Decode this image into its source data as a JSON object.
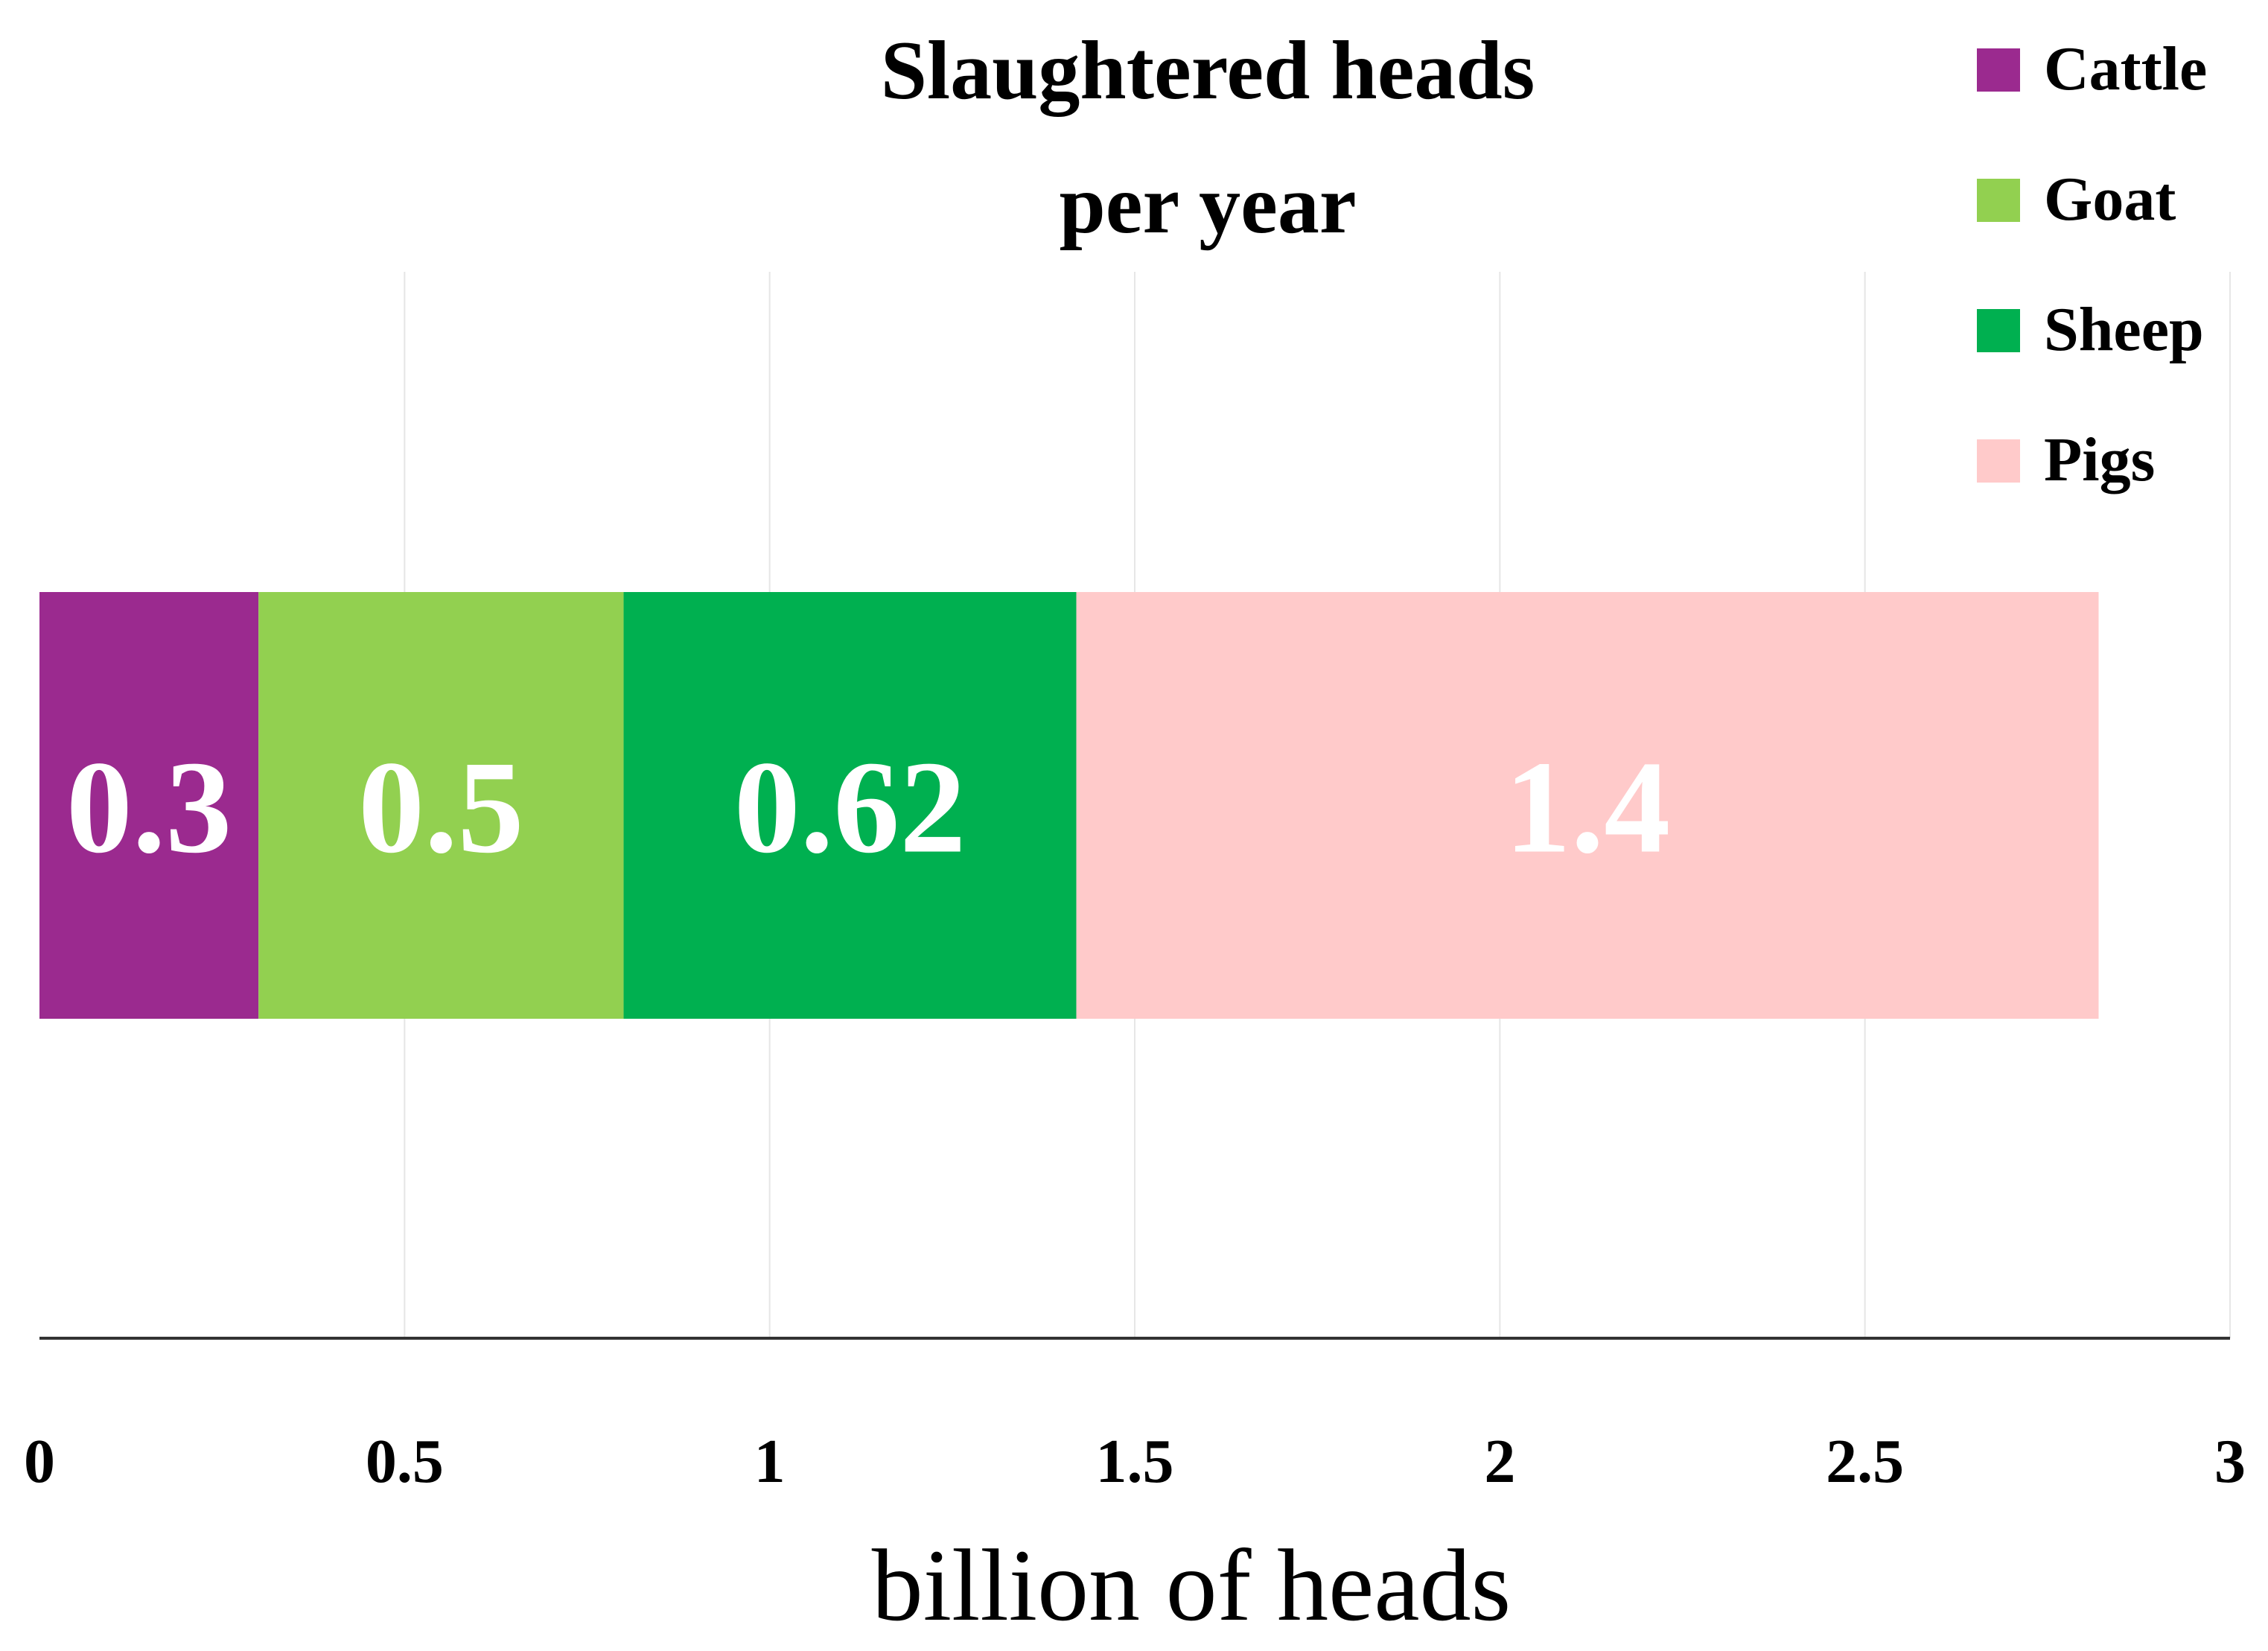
{
  "chart_data": {
    "type": "bar",
    "orientation": "horizontal",
    "stacked": true,
    "title_lines": [
      "Slaughtered heads",
      "per year"
    ],
    "xlabel": "billion of heads",
    "ylabel": "",
    "xlim": [
      0,
      3
    ],
    "xticks": [
      0,
      0.5,
      1,
      1.5,
      2,
      2.5,
      3
    ],
    "xtick_labels": [
      "0",
      "0.5",
      "1",
      "1.5",
      "2",
      "2.5",
      "3"
    ],
    "grid": "vertical",
    "legend_position": "top-right",
    "series": [
      {
        "name": "Cattle",
        "value": 0.3,
        "label": "0.3",
        "color": "#9b2a8f"
      },
      {
        "name": "Goat",
        "value": 0.5,
        "label": "0.5",
        "color": "#92d050"
      },
      {
        "name": "Sheep",
        "value": 0.62,
        "label": "0.62",
        "color": "#00b050"
      },
      {
        "name": "Pigs",
        "value": 1.4,
        "label": "1.4",
        "color": "#ffcaca"
      }
    ]
  }
}
